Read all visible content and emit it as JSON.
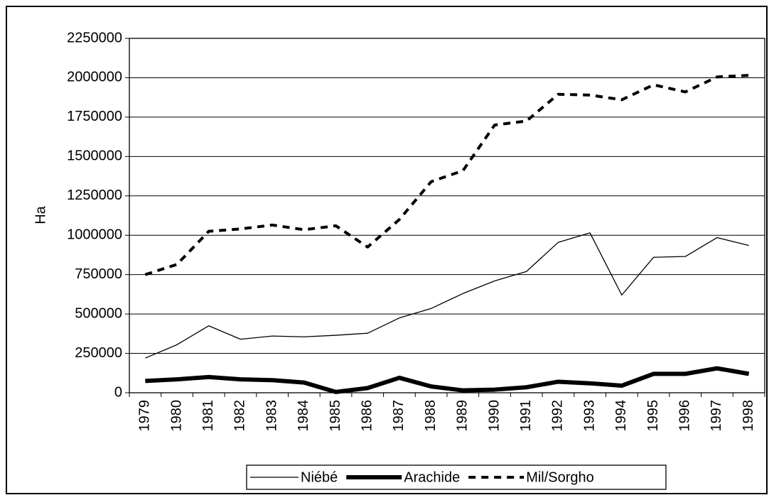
{
  "chart_data": {
    "type": "line",
    "y_label": "Ha",
    "categories": [
      "1979",
      "1980",
      "1981",
      "1982",
      "1983",
      "1984",
      "1985",
      "1986",
      "1987",
      "1988",
      "1989",
      "1990",
      "1991",
      "1992",
      "1993",
      "1994",
      "1995",
      "1996",
      "1997",
      "1998"
    ],
    "series": [
      {
        "name": "Niébé",
        "color": "#000000",
        "width": 1.3,
        "dash": false,
        "values": [
          220000,
          305000,
          425000,
          340000,
          360000,
          355000,
          365000,
          378000,
          475000,
          535000,
          630000,
          710000,
          770000,
          955000,
          1015000,
          620000,
          860000,
          865000,
          985000,
          935000
        ]
      },
      {
        "name": "Arachide",
        "color": "#000000",
        "width": 6,
        "dash": false,
        "values": [
          75000,
          85000,
          100000,
          85000,
          80000,
          65000,
          5000,
          30000,
          95000,
          40000,
          15000,
          20000,
          35000,
          70000,
          60000,
          45000,
          120000,
          120000,
          155000,
          120000
        ]
      },
      {
        "name": "Mil/Sorgho",
        "color": "#000000",
        "width": 4,
        "dash": true,
        "values": [
          750000,
          815000,
          1025000,
          1040000,
          1065000,
          1035000,
          1060000,
          925000,
          1100000,
          1340000,
          1410000,
          1700000,
          1725000,
          1895000,
          1890000,
          1860000,
          1955000,
          1910000,
          2005000,
          2015000
        ]
      }
    ],
    "ylim": [
      0,
      2250000
    ],
    "yticks": [
      0,
      250000,
      500000,
      750000,
      1000000,
      1250000,
      1500000,
      1750000,
      2000000,
      2250000
    ],
    "grid": true,
    "legend": "bottom"
  }
}
